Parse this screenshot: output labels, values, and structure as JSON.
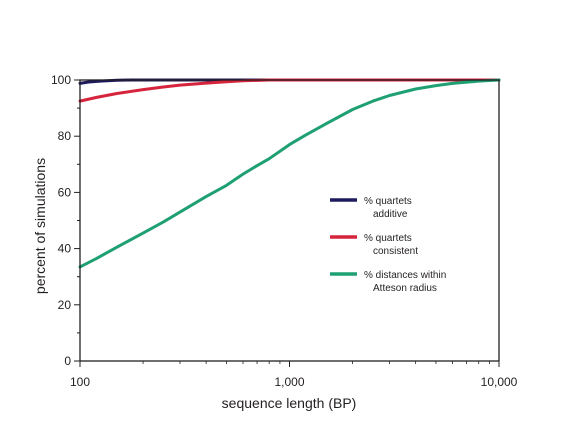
{
  "chart_data": {
    "type": "line",
    "title": "",
    "xlabel": "sequence length (BP)",
    "ylabel": "percent of simulations",
    "x_scale": "log",
    "xlim": [
      100,
      10000
    ],
    "ylim": [
      0,
      100
    ],
    "x_ticks": [
      {
        "value": 100,
        "label": "100"
      },
      {
        "value": 1000,
        "label": "1,000"
      },
      {
        "value": 10000,
        "label": "10,000"
      }
    ],
    "y_ticks": [
      {
        "value": 0,
        "label": "0"
      },
      {
        "value": 20,
        "label": "20"
      },
      {
        "value": 40,
        "label": "40"
      },
      {
        "value": 60,
        "label": "60"
      },
      {
        "value": 80,
        "label": "80"
      },
      {
        "value": 100,
        "label": "100"
      }
    ],
    "grid": false,
    "legend_position": "right-middle",
    "series": [
      {
        "name": "% quartets additive",
        "legend_lines": [
          "% quartets",
          "additive"
        ],
        "color": "#1f1a5e",
        "x": [
          100,
          110,
          125,
          150,
          175,
          200,
          10000
        ],
        "y": [
          98.8,
          99.3,
          99.6,
          99.9,
          100,
          100,
          100
        ]
      },
      {
        "name": "% quartets consistent",
        "legend_lines": [
          "% quartets",
          "consistent"
        ],
        "color": "#d6243c",
        "x": [
          100,
          120,
          150,
          200,
          250,
          300,
          400,
          500,
          600,
          800,
          1000,
          10000
        ],
        "y": [
          92.5,
          93.8,
          95.2,
          96.6,
          97.5,
          98.2,
          98.9,
          99.4,
          99.7,
          100,
          100,
          100
        ]
      },
      {
        "name": "% distances within Atteson radius",
        "legend_lines": [
          "% distances within",
          "Atteson radius"
        ],
        "color": "#1fa072",
        "x": [
          100,
          120,
          150,
          200,
          250,
          300,
          400,
          500,
          600,
          700,
          800,
          1000,
          1200,
          1500,
          2000,
          2500,
          3000,
          4000,
          5000,
          6000,
          8000,
          10000
        ],
        "y": [
          33.5,
          36.5,
          40.5,
          45.5,
          49.5,
          53,
          58.5,
          62.5,
          66.5,
          69.5,
          72,
          77,
          80.5,
          84.5,
          89.5,
          92.5,
          94.5,
          96.8,
          98,
          98.8,
          99.6,
          100
        ]
      }
    ]
  }
}
